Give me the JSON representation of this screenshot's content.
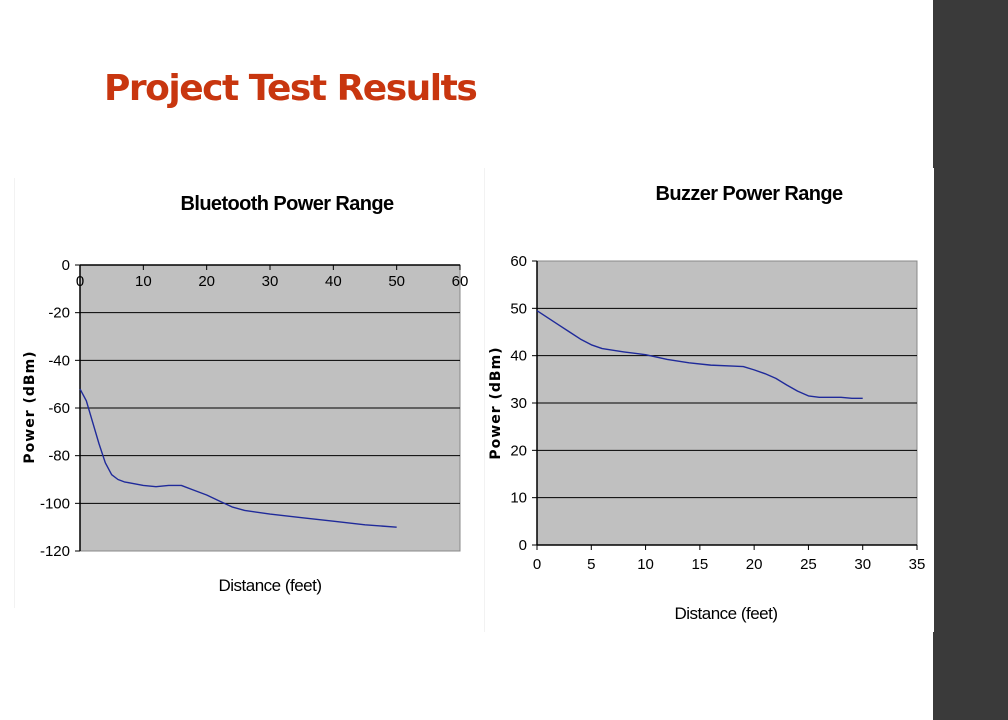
{
  "slide": {
    "title": "Project Test Results"
  },
  "colors": {
    "title": "#c8360f",
    "plot_area": "#c0c0c0",
    "series": "#1f2a9a",
    "sidebar": "#3a3a3a"
  },
  "chart_data": [
    {
      "type": "line",
      "title": "Bluetooth Power Range",
      "xlabel": "Distance (feet)",
      "ylabel": "Power (dBm)",
      "xlim": [
        0,
        60
      ],
      "ylim": [
        -120,
        0
      ],
      "xticks": [
        0,
        10,
        20,
        30,
        40,
        50,
        60
      ],
      "yticks": [
        0,
        -20,
        -40,
        -60,
        -80,
        -100,
        -120
      ],
      "x_axis_position": "top",
      "grid": "horizontal",
      "series": [
        {
          "x": [
            0,
            1,
            2,
            3,
            4,
            5,
            6,
            7,
            8,
            10,
            12,
            14,
            16,
            18,
            20,
            22,
            24,
            26,
            30,
            35,
            40,
            45,
            50
          ],
          "values": [
            -52,
            -57,
            -66,
            -75,
            -83,
            -88,
            -90,
            -91,
            -91.5,
            -92.5,
            -93,
            -92.5,
            -92.5,
            -94.5,
            -96.5,
            -99,
            -101.5,
            -103,
            -104.5,
            -106,
            -107.5,
            -109,
            -110
          ]
        }
      ]
    },
    {
      "type": "line",
      "title": "Buzzer Power  Range",
      "xlabel": "Distance (feet)",
      "ylabel": "Power (dBm)",
      "xlim": [
        0,
        35
      ],
      "ylim": [
        0,
        60
      ],
      "xticks": [
        0,
        5,
        10,
        15,
        20,
        25,
        30,
        35
      ],
      "yticks": [
        0,
        10,
        20,
        30,
        40,
        50,
        60
      ],
      "x_axis_position": "bottom",
      "grid": "horizontal",
      "series": [
        {
          "x": [
            0,
            1,
            2,
            3,
            4,
            5,
            6,
            8,
            10,
            12,
            14,
            16,
            18,
            19,
            20,
            21,
            22,
            23,
            24,
            25,
            26,
            28,
            29,
            30
          ],
          "values": [
            49.5,
            48,
            46.5,
            45,
            43.5,
            42.3,
            41.5,
            40.8,
            40.2,
            39.2,
            38.5,
            38,
            37.8,
            37.7,
            37,
            36.2,
            35.2,
            33.8,
            32.5,
            31.5,
            31.2,
            31.2,
            31,
            31
          ]
        }
      ]
    }
  ]
}
